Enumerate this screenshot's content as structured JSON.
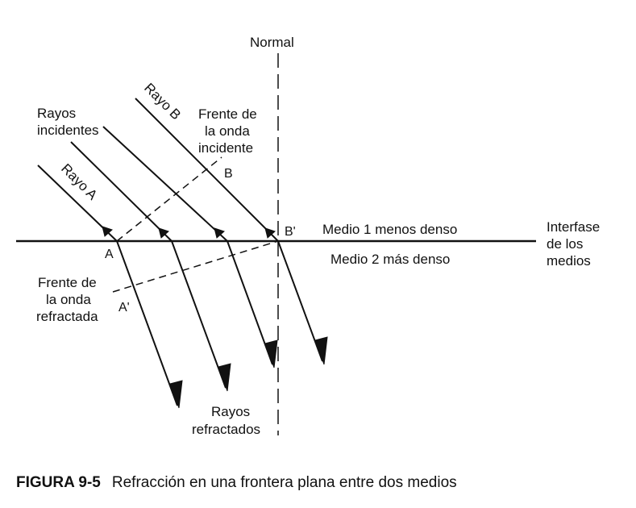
{
  "labels": {
    "normal": "Normal",
    "rayo_b": "Rayo B",
    "rayo_a": "Rayo A",
    "rayos_incidentes_1": "Rayos",
    "rayos_incidentes_2": "incidentes",
    "frente_incidente_1": "Frente de",
    "frente_incidente_2": "la onda",
    "frente_incidente_3": "incidente",
    "point_b": "B",
    "point_b_prime": "B'",
    "point_a": "A",
    "point_a_prime": "A'",
    "medio_1": "Medio 1 menos denso",
    "medio_2": "Medio 2 más denso",
    "interfase_1": "Interfase",
    "interfase_2": "de los",
    "interfase_3": "medios",
    "frente_refractada_1": "Frente de",
    "frente_refractada_2": "la onda",
    "frente_refractada_3": "refractada",
    "rayos_refractados_1": "Rayos",
    "rayos_refractados_2": "refractados"
  },
  "caption": {
    "figure_number": "FIGURA 9-5",
    "text": "Refracción en una frontera plana entre dos medios"
  }
}
